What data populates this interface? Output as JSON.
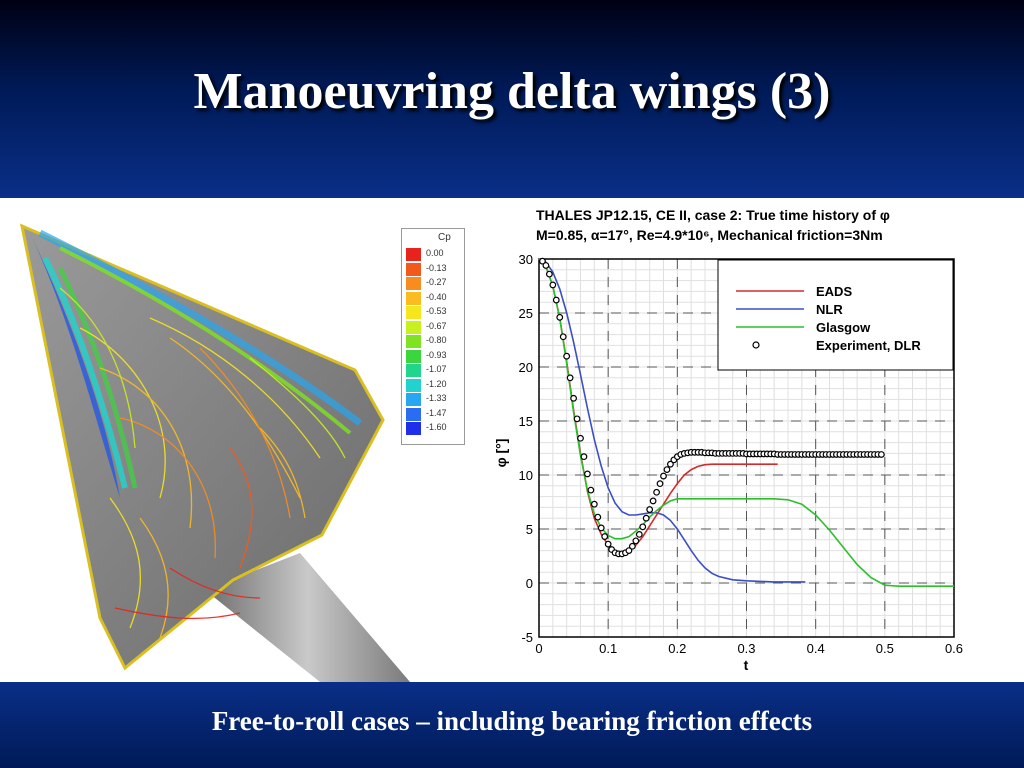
{
  "slide": {
    "title": "Manoeuvring delta wings (3)",
    "caption": "Free-to-roll cases – including bearing friction effects"
  },
  "cp_legend": {
    "title": "Cp",
    "levels": [
      "0.00",
      "-0.13",
      "-0.27",
      "-0.40",
      "-0.53",
      "-0.67",
      "-0.80",
      "-0.93",
      "-1.07",
      "-1.20",
      "-1.33",
      "-1.47",
      "-1.60"
    ],
    "colors": [
      "#e8231b",
      "#f25a1c",
      "#f78d1e",
      "#fbbc22",
      "#f5e61e",
      "#c8ef1f",
      "#7fe322",
      "#3ad63e",
      "#21d58a",
      "#21d3cc",
      "#26a7ef",
      "#2a6cf2",
      "#1f2ee8"
    ]
  },
  "chart_data": {
    "type": "line",
    "title": "THALES JP12.15, CE II, case 2: True time history of φ",
    "subtitle": "M=0.85, α=17°, Re=4.9*10⁶, Mechanical friction=3Nm",
    "xlabel": "t",
    "ylabel": "φ [°]",
    "xlim": [
      0,
      0.6
    ],
    "ylim": [
      -5,
      30
    ],
    "xticks": [
      "0",
      "0.1",
      "0.2",
      "0.3",
      "0.4",
      "0.5",
      "0.6"
    ],
    "yticks": [
      "-5",
      "0",
      "5",
      "10",
      "15",
      "20",
      "25",
      "30"
    ],
    "grid": true,
    "legend_position": "top-right",
    "series": [
      {
        "name": "EADS",
        "color": "#d42a2a",
        "style": "line",
        "x": [
          0,
          0.01,
          0.02,
          0.03,
          0.04,
          0.05,
          0.06,
          0.07,
          0.08,
          0.09,
          0.1,
          0.11,
          0.12,
          0.13,
          0.14,
          0.15,
          0.16,
          0.17,
          0.18,
          0.19,
          0.2,
          0.21,
          0.22,
          0.23,
          0.24,
          0.25,
          0.26,
          0.28,
          0.3,
          0.32,
          0.345
        ],
        "y": [
          30,
          29.3,
          27.5,
          24.5,
          20.5,
          16,
          12,
          8.5,
          6,
          4.5,
          3.5,
          3,
          2.8,
          3,
          3.5,
          4.3,
          5.3,
          6.3,
          7.3,
          8.3,
          9.2,
          10,
          10.5,
          10.8,
          10.95,
          11,
          11,
          11,
          11,
          11,
          11
        ]
      },
      {
        "name": "NLR",
        "color": "#3b4fc4",
        "style": "line",
        "x": [
          0,
          0.01,
          0.02,
          0.03,
          0.04,
          0.05,
          0.06,
          0.07,
          0.08,
          0.09,
          0.1,
          0.11,
          0.12,
          0.13,
          0.14,
          0.15,
          0.16,
          0.17,
          0.18,
          0.19,
          0.2,
          0.21,
          0.22,
          0.23,
          0.24,
          0.25,
          0.26,
          0.28,
          0.3,
          0.32,
          0.34,
          0.36,
          0.385
        ],
        "y": [
          30,
          29.7,
          28.8,
          27.2,
          25,
          22.3,
          19.3,
          16.2,
          13.3,
          10.8,
          8.8,
          7.4,
          6.6,
          6.3,
          6.3,
          6.4,
          6.5,
          6.5,
          6.3,
          5.8,
          5,
          4,
          3,
          2.1,
          1.4,
          0.9,
          0.6,
          0.3,
          0.2,
          0.15,
          0.1,
          0.1,
          0.1
        ]
      },
      {
        "name": "Glasgow",
        "color": "#2cbf2c",
        "style": "line",
        "x": [
          0,
          0.01,
          0.02,
          0.03,
          0.04,
          0.05,
          0.06,
          0.07,
          0.08,
          0.09,
          0.1,
          0.11,
          0.12,
          0.13,
          0.14,
          0.15,
          0.16,
          0.17,
          0.18,
          0.19,
          0.2,
          0.22,
          0.24,
          0.26,
          0.28,
          0.3,
          0.32,
          0.34,
          0.36,
          0.38,
          0.4,
          0.42,
          0.44,
          0.46,
          0.48,
          0.5,
          0.52,
          0.55,
          0.6
        ],
        "y": [
          30,
          29.3,
          27.5,
          24.5,
          20.3,
          15.8,
          11.8,
          8.6,
          6.4,
          5.1,
          4.4,
          4.1,
          4.1,
          4.3,
          4.8,
          5.4,
          6.1,
          6.7,
          7.2,
          7.6,
          7.8,
          7.8,
          7.8,
          7.8,
          7.8,
          7.8,
          7.8,
          7.8,
          7.7,
          7.3,
          6.3,
          4.9,
          3.3,
          1.7,
          0.5,
          -0.2,
          -0.3,
          -0.3,
          -0.3
        ]
      },
      {
        "name": "Experiment, DLR",
        "color": "#000000",
        "style": "markers",
        "x": [
          0.005,
          0.01,
          0.015,
          0.02,
          0.025,
          0.03,
          0.035,
          0.04,
          0.045,
          0.05,
          0.055,
          0.06,
          0.065,
          0.07,
          0.075,
          0.08,
          0.085,
          0.09,
          0.095,
          0.1,
          0.105,
          0.11,
          0.115,
          0.12,
          0.125,
          0.13,
          0.135,
          0.14,
          0.145,
          0.15,
          0.155,
          0.16,
          0.165,
          0.17,
          0.175,
          0.18,
          0.185,
          0.19,
          0.195,
          0.2,
          0.205,
          0.21,
          0.215,
          0.22,
          0.225,
          0.23,
          0.235,
          0.24,
          0.245,
          0.25,
          0.255,
          0.26,
          0.265,
          0.27,
          0.275,
          0.28,
          0.285,
          0.29,
          0.295,
          0.3,
          0.305,
          0.31,
          0.315,
          0.32,
          0.325,
          0.33,
          0.335,
          0.34,
          0.345,
          0.35,
          0.355,
          0.36,
          0.365,
          0.37,
          0.375,
          0.38,
          0.385,
          0.39,
          0.395,
          0.4,
          0.405,
          0.41,
          0.415,
          0.42,
          0.425,
          0.43,
          0.435,
          0.44,
          0.445,
          0.45,
          0.455,
          0.46,
          0.465,
          0.47,
          0.475,
          0.48,
          0.485,
          0.49,
          0.495
        ],
        "y": [
          29.8,
          29.4,
          28.6,
          27.6,
          26.2,
          24.6,
          22.8,
          21,
          19,
          17.1,
          15.2,
          13.4,
          11.7,
          10.1,
          8.6,
          7.3,
          6.1,
          5.1,
          4.3,
          3.6,
          3.1,
          2.8,
          2.7,
          2.7,
          2.8,
          3.0,
          3.4,
          3.9,
          4.5,
          5.2,
          6.0,
          6.8,
          7.6,
          8.4,
          9.2,
          9.9,
          10.5,
          11,
          11.4,
          11.7,
          11.9,
          12,
          12.05,
          12.1,
          12.1,
          12.1,
          12.1,
          12.05,
          12.05,
          12.05,
          12,
          12,
          12,
          12,
          12,
          12,
          12,
          12,
          12,
          11.95,
          11.95,
          11.95,
          11.95,
          11.95,
          11.95,
          11.95,
          11.95,
          11.95,
          11.9,
          11.9,
          11.9,
          11.9,
          11.9,
          11.9,
          11.9,
          11.9,
          11.9,
          11.9,
          11.9,
          11.9,
          11.9,
          11.9,
          11.9,
          11.9,
          11.9,
          11.9,
          11.9,
          11.9,
          11.9,
          11.9,
          11.9,
          11.9,
          11.9,
          11.9,
          11.9,
          11.9,
          11.9,
          11.9,
          11.9
        ]
      }
    ]
  }
}
